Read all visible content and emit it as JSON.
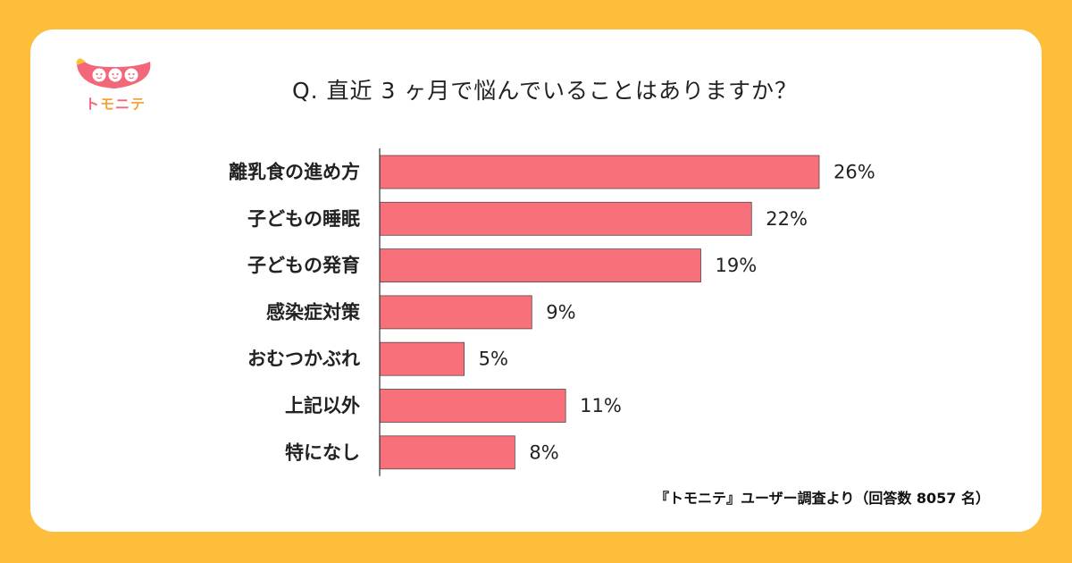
{
  "brand": {
    "name_chars": [
      "ト",
      "モ",
      "ニ",
      "テ"
    ],
    "colors": {
      "pink": "#F2687A",
      "orange": "#F7A33B",
      "background": "#FDBE3C"
    }
  },
  "chart_data": {
    "type": "bar",
    "orientation": "horizontal",
    "title": "Q. 直近 3 ヶ月で悩んでいることはありますか？",
    "source": "『トモニテ』ユーザー調査より（回答数 8057 名）",
    "categories": [
      "離乳食の進め方",
      "子どもの睡眠",
      "子どもの発育",
      "感染症対策",
      "おむつかぶれ",
      "上記以外",
      "特になし"
    ],
    "values": [
      26,
      22,
      19,
      9,
      5,
      11,
      8
    ],
    "value_labels": [
      "26%",
      "22%",
      "19%",
      "9%",
      "5%",
      "11%",
      "8%"
    ],
    "unit": "%",
    "xlim": [
      0,
      26
    ],
    "bar_color": "#F7707A",
    "grid": false,
    "legend": "none"
  }
}
